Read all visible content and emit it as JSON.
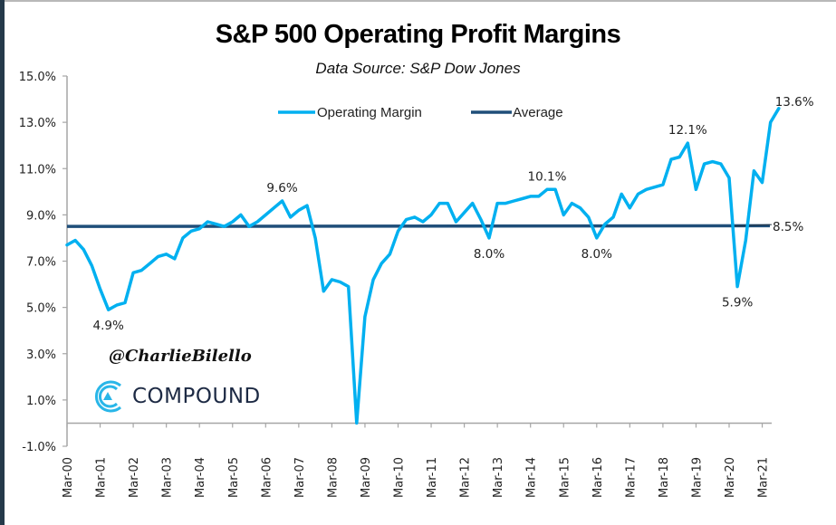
{
  "colors": {
    "operating_margin": "#00b0f0",
    "average": "#1f4e79",
    "axis": "#a6a6a6",
    "logo_accent": "#29b6e8",
    "logo_text": "#1d2a44"
  },
  "watermark": {
    "handle": "@CharlieBilello",
    "logo_text": "COMPOUND",
    "logo_icon": "compound-c-logo-icon"
  },
  "chart_data": {
    "type": "line",
    "title": "S&P 500 Operating Profit Margins",
    "subtitle": "Data Source: S&P Dow Jones",
    "xlabel": "",
    "ylabel": "",
    "ylim": [
      -1.0,
      15.0
    ],
    "yticks": [
      -1.0,
      1.0,
      3.0,
      5.0,
      7.0,
      9.0,
      11.0,
      13.0,
      15.0
    ],
    "ytick_labels": [
      "-1.0%",
      "1.0%",
      "3.0%",
      "5.0%",
      "7.0%",
      "9.0%",
      "11.0%",
      "13.0%",
      "15.0%"
    ],
    "x_tick_labels": [
      "Mar-00",
      "Mar-01",
      "Mar-02",
      "Mar-03",
      "Mar-04",
      "Mar-05",
      "Mar-06",
      "Mar-07",
      "Mar-08",
      "Mar-09",
      "Mar-10",
      "Mar-11",
      "Mar-12",
      "Mar-13",
      "Mar-14",
      "Mar-15",
      "Mar-16",
      "Mar-17",
      "Mar-18",
      "Mar-19",
      "Mar-20",
      "Mar-21"
    ],
    "x_frequency": "quarterly, starting Mar-00",
    "grid": false,
    "legend": {
      "position": "top-center",
      "entries": [
        "Operating Margin",
        "Average"
      ]
    },
    "series": [
      {
        "name": "Operating Margin",
        "values": [
          7.7,
          7.9,
          7.5,
          6.8,
          5.8,
          4.9,
          5.1,
          5.2,
          6.5,
          6.6,
          6.9,
          7.2,
          7.3,
          7.1,
          8.0,
          8.3,
          8.4,
          8.7,
          8.6,
          8.5,
          8.7,
          9.0,
          8.5,
          8.7,
          9.0,
          9.3,
          9.6,
          8.9,
          9.2,
          9.4,
          8.0,
          5.7,
          6.2,
          6.1,
          5.9,
          0.0,
          4.6,
          6.2,
          6.9,
          7.3,
          8.3,
          8.8,
          8.9,
          8.7,
          9.0,
          9.5,
          9.5,
          8.7,
          9.1,
          9.5,
          8.8,
          8.0,
          9.5,
          9.5,
          9.6,
          9.7,
          9.8,
          9.8,
          10.1,
          10.1,
          9.0,
          9.5,
          9.3,
          8.9,
          8.0,
          8.6,
          8.9,
          9.9,
          9.3,
          9.9,
          10.1,
          10.2,
          10.3,
          11.4,
          11.5,
          12.1,
          10.1,
          11.2,
          11.3,
          11.2,
          10.6,
          5.9,
          7.9,
          10.9,
          10.4,
          13.0,
          13.6
        ]
      },
      {
        "name": "Average",
        "value": 8.5
      }
    ],
    "annotations": [
      {
        "text": "4.9%",
        "series": "Operating Margin",
        "period": "Q2-01",
        "value": 4.9,
        "position": "below"
      },
      {
        "text": "9.6%",
        "series": "Operating Margin",
        "period": "Q3-06",
        "value": 9.6,
        "position": "above"
      },
      {
        "text": "8.0%",
        "series": "Operating Margin",
        "period": "Q4-12",
        "value": 8.0,
        "position": "below"
      },
      {
        "text": "10.1%",
        "series": "Operating Margin",
        "period": "Q3-14",
        "value": 10.1,
        "position": "above"
      },
      {
        "text": "8.0%",
        "series": "Operating Margin",
        "period": "Q1-16",
        "value": 8.0,
        "position": "below"
      },
      {
        "text": "12.1%",
        "series": "Operating Margin",
        "period": "Q4-18",
        "value": 12.1,
        "position": "above"
      },
      {
        "text": "5.9%",
        "series": "Operating Margin",
        "period": "Q2-20",
        "value": 5.9,
        "position": "below"
      },
      {
        "text": "13.6%",
        "series": "Operating Margin",
        "period": "Q2-21",
        "value": 13.6,
        "position": "right"
      },
      {
        "text": "8.5%",
        "series": "Average",
        "value": 8.5,
        "position": "right"
      }
    ]
  }
}
